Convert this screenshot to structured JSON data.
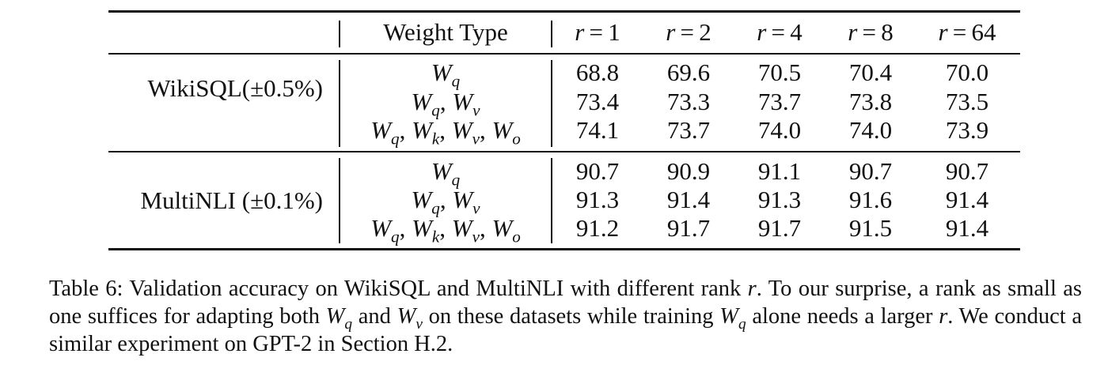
{
  "table": {
    "header": {
      "weight_type": "Weight Type",
      "ranks": [
        {
          "var": "r",
          "value": "1"
        },
        {
          "var": "r",
          "value": "2"
        },
        {
          "var": "r",
          "value": "4"
        },
        {
          "var": "r",
          "value": "8"
        },
        {
          "var": "r",
          "value": "64"
        }
      ]
    },
    "groups": [
      {
        "dataset": "WikiSQL(±0.5%)",
        "rows": [
          {
            "weights": [
              {
                "base": "W",
                "sub": "q"
              }
            ],
            "values": [
              "68.8",
              "69.6",
              "70.5",
              "70.4",
              "70.0"
            ]
          },
          {
            "weights": [
              {
                "base": "W",
                "sub": "q"
              },
              {
                "base": "W",
                "sub": "v"
              }
            ],
            "values": [
              "73.4",
              "73.3",
              "73.7",
              "73.8",
              "73.5"
            ]
          },
          {
            "weights": [
              {
                "base": "W",
                "sub": "q"
              },
              {
                "base": "W",
                "sub": "k"
              },
              {
                "base": "W",
                "sub": "v"
              },
              {
                "base": "W",
                "sub": "o"
              }
            ],
            "values": [
              "74.1",
              "73.7",
              "74.0",
              "74.0",
              "73.9"
            ]
          }
        ]
      },
      {
        "dataset": "MultiNLI (±0.1%)",
        "rows": [
          {
            "weights": [
              {
                "base": "W",
                "sub": "q"
              }
            ],
            "values": [
              "90.7",
              "90.9",
              "91.1",
              "90.7",
              "90.7"
            ]
          },
          {
            "weights": [
              {
                "base": "W",
                "sub": "q"
              },
              {
                "base": "W",
                "sub": "v"
              }
            ],
            "values": [
              "91.3",
              "91.4",
              "91.3",
              "91.6",
              "91.4"
            ]
          },
          {
            "weights": [
              {
                "base": "W",
                "sub": "q"
              },
              {
                "base": "W",
                "sub": "k"
              },
              {
                "base": "W",
                "sub": "v"
              },
              {
                "base": "W",
                "sub": "o"
              }
            ],
            "values": [
              "91.2",
              "91.7",
              "91.7",
              "91.5",
              "91.4"
            ]
          }
        ]
      }
    ]
  },
  "caption": {
    "label": "Table 6:",
    "text_1": "Validation accuracy on WikiSQL and MultiNLI with different rank",
    "var_r": "r",
    "text_2": ". To our surprise, a rank as small as one suffices for adapting both",
    "wq_base": "W",
    "wq_sub": "q",
    "text_3": "and",
    "wv_base": "W",
    "wv_sub": "v",
    "text_4": "on these datasets while training",
    "text_5": "alone needs a larger",
    "text_6": ". We conduct a similar experiment on GPT-2 in Section H.2."
  }
}
